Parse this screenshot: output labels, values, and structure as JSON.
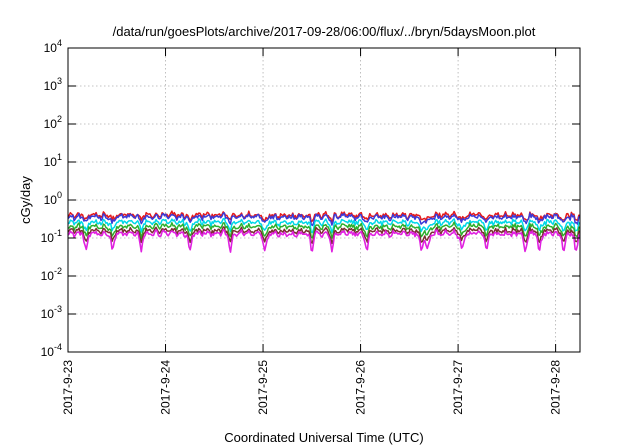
{
  "chart_data": {
    "type": "line",
    "title": "/data/run/goesPlots/archive/2017-09-28/06:00/flux/../bryn/5daysMoon.plot",
    "xlabel": "Coordinated Universal Time (UTC)",
    "ylabel": "cGy/day",
    "yscale": "log",
    "ylim": [
      0.0001,
      10000
    ],
    "y_ticks": [
      {
        "value": 0.0001,
        "base": "10",
        "exp": "-4"
      },
      {
        "value": 0.001,
        "base": "10",
        "exp": "-3"
      },
      {
        "value": 0.01,
        "base": "10",
        "exp": "-2"
      },
      {
        "value": 0.1,
        "base": "10",
        "exp": "-1"
      },
      {
        "value": 1,
        "base": "10",
        "exp": "0"
      },
      {
        "value": 10,
        "base": "10",
        "exp": "1"
      },
      {
        "value": 100,
        "base": "10",
        "exp": "2"
      },
      {
        "value": 1000,
        "base": "10",
        "exp": "3"
      },
      {
        "value": 10000,
        "base": "10",
        "exp": "4"
      }
    ],
    "xlim": [
      "2017-09-23T00:00",
      "2017-09-28T06:00"
    ],
    "x_ticks": [
      {
        "value": "2017-09-23T00:00",
        "label": "2017-9-23"
      },
      {
        "value": "2017-09-24T00:00",
        "label": "2017-9-24"
      },
      {
        "value": "2017-09-25T00:00",
        "label": "2017-9-25"
      },
      {
        "value": "2017-09-26T00:00",
        "label": "2017-9-26"
      },
      {
        "value": "2017-09-27T00:00",
        "label": "2017-9-27"
      },
      {
        "value": "2017-09-28T00:00",
        "label": "2017-9-28"
      }
    ],
    "grid": true,
    "series": [
      {
        "color": "#e41a1c",
        "base": 0.4
      },
      {
        "color": "#3a3ad8",
        "base": 0.36
      },
      {
        "color": "#00d8e8",
        "base": 0.26
      },
      {
        "color": "#2cb02c",
        "base": 0.2
      },
      {
        "color": "#7a3030",
        "base": 0.155
      },
      {
        "color": "#e020e0",
        "base": 0.13
      }
    ],
    "dip_times": [
      "2017-09-23T04:30",
      "2017-09-23T11:00",
      "2017-09-23T18:00",
      "2017-09-24T06:00",
      "2017-09-24T16:00",
      "2017-09-25T00:30",
      "2017-09-25T12:00",
      "2017-09-25T17:00",
      "2017-09-26T01:30",
      "2017-09-26T15:00",
      "2017-09-26T16:30",
      "2017-09-27T01:00",
      "2017-09-27T07:00",
      "2017-09-27T16:30",
      "2017-09-27T20:00",
      "2017-09-28T02:00",
      "2017-09-28T05:00"
    ]
  }
}
